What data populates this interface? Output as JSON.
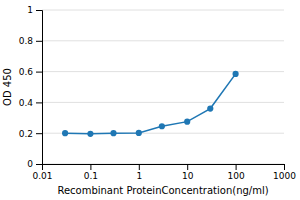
{
  "chart_data": {
    "type": "line",
    "x": [
      0.03,
      0.1,
      0.3,
      1,
      3,
      10,
      30,
      100
    ],
    "values": [
      0.2,
      0.196,
      0.2,
      0.202,
      0.245,
      0.275,
      0.36,
      0.585
    ],
    "xlabel": "Recombinant ProteinConcentration(ng/ml)",
    "ylabel": "OD 450",
    "xlim": [
      0.01,
      1000
    ],
    "ylim": [
      0,
      1
    ],
    "xticks": [
      0.01,
      0.1,
      1,
      10,
      100,
      1000
    ],
    "yticks": [
      0,
      0.2,
      0.4,
      0.6,
      0.8,
      1
    ],
    "log": "x",
    "grid": true,
    "marker": "circle"
  }
}
